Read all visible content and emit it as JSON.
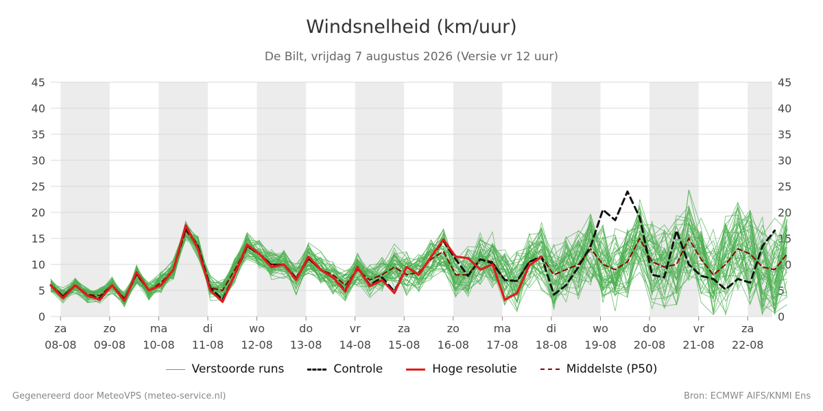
{
  "header": {
    "title": "Windsnelheid (km/uur)",
    "subtitle": "De Bilt, vrijdag  7 augustus 2026 (Versie vr 12 uur)"
  },
  "legend": [
    {
      "label": "Verstoorde runs",
      "style": "thin",
      "color": "#4caf50"
    },
    {
      "label": "Controle",
      "style": "dashed",
      "color": "#111111"
    },
    {
      "label": "Hoge resolutie",
      "style": "solid",
      "color": "#e31a1c"
    },
    {
      "label": "Middelste (P50)",
      "style": "dashed",
      "color": "#8b0000"
    }
  ],
  "footer": {
    "left": "Gegenereerd door MeteoVPS (meteo-service.nl)",
    "right": "Bron: ECMWF AIFS/KNMI Ens"
  },
  "colors": {
    "ensemble": "#4caf50",
    "control": "#111111",
    "high_res": "#e31a1c",
    "median": "#8b0000",
    "band": "#ececec",
    "grid": "#d9d9d9"
  },
  "chart_data": {
    "type": "line",
    "ylim": [
      0,
      45
    ],
    "yticks": [
      0,
      5,
      10,
      15,
      20,
      25,
      30,
      35,
      40,
      45
    ],
    "x_start_day": 7.8,
    "x_end_day": 22.5,
    "x_step_days": 0.25,
    "day_labels": [
      {
        "day": 8,
        "weekday": "za",
        "date": "08-08"
      },
      {
        "day": 9,
        "weekday": "zo",
        "date": "09-08"
      },
      {
        "day": 10,
        "weekday": "ma",
        "date": "10-08"
      },
      {
        "day": 11,
        "weekday": "di",
        "date": "11-08"
      },
      {
        "day": 12,
        "weekday": "wo",
        "date": "12-08"
      },
      {
        "day": 13,
        "weekday": "do",
        "date": "13-08"
      },
      {
        "day": 14,
        "weekday": "vr",
        "date": "14-08"
      },
      {
        "day": 15,
        "weekday": "za",
        "date": "15-08"
      },
      {
        "day": 16,
        "weekday": "zo",
        "date": "16-08"
      },
      {
        "day": 17,
        "weekday": "ma",
        "date": "17-08"
      },
      {
        "day": 18,
        "weekday": "di",
        "date": "18-08"
      },
      {
        "day": 19,
        "weekday": "wo",
        "date": "19-08"
      },
      {
        "day": 20,
        "weekday": "do",
        "date": "20-08"
      },
      {
        "day": 21,
        "weekday": "vr",
        "date": "21-08"
      },
      {
        "day": 22,
        "weekday": "za",
        "date": "22-08"
      }
    ],
    "shaded_days": [
      8,
      10,
      12,
      14,
      16,
      18,
      20,
      22
    ],
    "high_res": {
      "name": "Hoge resolutie",
      "values": [
        6,
        3.5,
        6,
        4,
        3.2,
        6,
        3,
        8.5,
        5,
        6,
        9,
        17.5,
        13,
        5,
        2.8,
        8,
        13.8,
        12,
        9.5,
        10,
        7,
        11.5,
        9,
        7.5,
        4.8,
        9.5,
        5.8,
        7,
        4.5,
        9.5,
        8,
        11.5,
        14.8,
        11.5,
        11.2,
        9,
        10,
        3.2,
        4.5,
        9.8,
        11.5
      ]
    },
    "control": {
      "name": "Controle",
      "values": [
        6,
        3.8,
        6,
        4,
        3.5,
        6,
        3.2,
        8.2,
        5,
        6,
        9,
        17,
        13.5,
        5.5,
        3.2,
        8,
        13.5,
        12,
        9.8,
        10,
        7.2,
        11.2,
        9,
        7.5,
        5,
        9.5,
        6,
        7.5,
        4.8,
        9.5,
        8,
        11.5,
        14.5,
        11,
        7.8,
        11,
        10.2,
        7,
        6.8,
        10.5,
        11.5,
        4.2,
        6,
        9.5,
        13.5,
        20.5,
        18.5,
        24,
        19,
        8,
        7.5,
        16.5,
        10,
        7.8,
        7.2,
        5.2,
        7.2,
        6.5,
        13.5,
        16.5
      ]
    },
    "median": {
      "name": "Middelste (P50)",
      "values": [
        6,
        4,
        6,
        4.2,
        4,
        6,
        3.5,
        8,
        5,
        6.5,
        9,
        16.5,
        13.5,
        5.5,
        5,
        9,
        13.5,
        12,
        10,
        10,
        7.5,
        11,
        9,
        8,
        6,
        9,
        7,
        8,
        9.5,
        8,
        8.5,
        11,
        12.5,
        8,
        8,
        11,
        10.5,
        7,
        6.8,
        10.5,
        11.5,
        8,
        9,
        10,
        13,
        10,
        9,
        10.5,
        15,
        10.5,
        9.5,
        10,
        15,
        11,
        8,
        10,
        13,
        12,
        9.5,
        9,
        12
      ]
    }
  }
}
